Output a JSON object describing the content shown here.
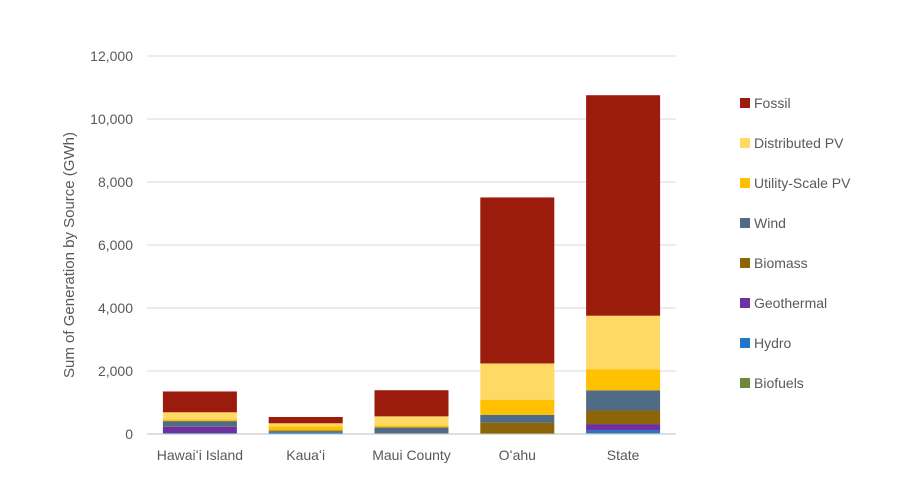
{
  "chart_data": {
    "type": "bar",
    "stacked": true,
    "title": "",
    "xlabel": "",
    "ylabel": "Sum of Generation by Source (GWh)",
    "ylim": [
      0,
      12000
    ],
    "yticks": [
      0,
      2000,
      4000,
      6000,
      8000,
      10000,
      12000
    ],
    "ytick_labels": [
      "0",
      "2,000",
      "4,000",
      "6,000",
      "8,000",
      "10,000",
      "12,000"
    ],
    "grid": true,
    "legend_position": "right",
    "categories": [
      "Hawaiʻi Island",
      "Kauaʻi",
      "Maui County",
      "Oʻahu",
      "State"
    ],
    "series": [
      {
        "name": "Biofuels",
        "color": "#70883c",
        "values": [
          0,
          0,
          20,
          0,
          25
        ]
      },
      {
        "name": "Hydro",
        "color": "#1f77c8",
        "values": [
          30,
          60,
          0,
          0,
          90
        ]
      },
      {
        "name": "Geothermal",
        "color": "#7030a0",
        "values": [
          200,
          0,
          0,
          0,
          200
        ]
      },
      {
        "name": "Biomass",
        "color": "#8b6508",
        "values": [
          0,
          30,
          0,
          360,
          430
        ]
      },
      {
        "name": "Wind",
        "color": "#4f6b85",
        "values": [
          180,
          20,
          190,
          250,
          640
        ]
      },
      {
        "name": "Utility-Scale PV",
        "color": "#ffc000",
        "values": [
          50,
          130,
          60,
          480,
          670
        ]
      },
      {
        "name": "Distributed PV",
        "color": "#ffd966",
        "values": [
          230,
          100,
          290,
          1150,
          1700
        ]
      },
      {
        "name": "Fossil",
        "color": "#9b1c0c",
        "values": [
          660,
          200,
          830,
          5270,
          7000
        ]
      }
    ]
  }
}
